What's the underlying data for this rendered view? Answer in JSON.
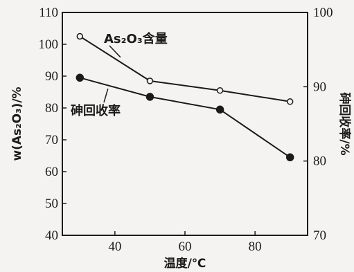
{
  "chart_data": {
    "type": "line",
    "xlabel": "温度/℃",
    "ylabel_left": "w(As₂O₃)/%",
    "ylabel_right": "砷回收率/%",
    "x_ticks": [
      40,
      60,
      80
    ],
    "xlim": [
      25,
      95
    ],
    "ylim_left": [
      40,
      110
    ],
    "y_ticks_left": [
      40,
      50,
      60,
      70,
      80,
      90,
      100,
      110
    ],
    "ylim_right": [
      70,
      100
    ],
    "y_ticks_right": [
      70,
      80,
      90,
      100
    ],
    "grid": false,
    "series": [
      {
        "name": "As₂O₃含量",
        "axis": "left",
        "marker": "open-circle",
        "x": [
          30,
          50,
          70,
          90
        ],
        "y": [
          102.5,
          88.5,
          85.5,
          82.0
        ]
      },
      {
        "name": "砷回收率",
        "axis": "left",
        "marker": "filled-circle",
        "x": [
          30,
          50,
          70,
          90
        ],
        "y": [
          89.5,
          83.5,
          79.5,
          64.5
        ]
      }
    ],
    "annotations": [
      {
        "text": "As₂O₃含量",
        "series": 0
      },
      {
        "text": "砷回收率",
        "series": 1
      }
    ]
  }
}
